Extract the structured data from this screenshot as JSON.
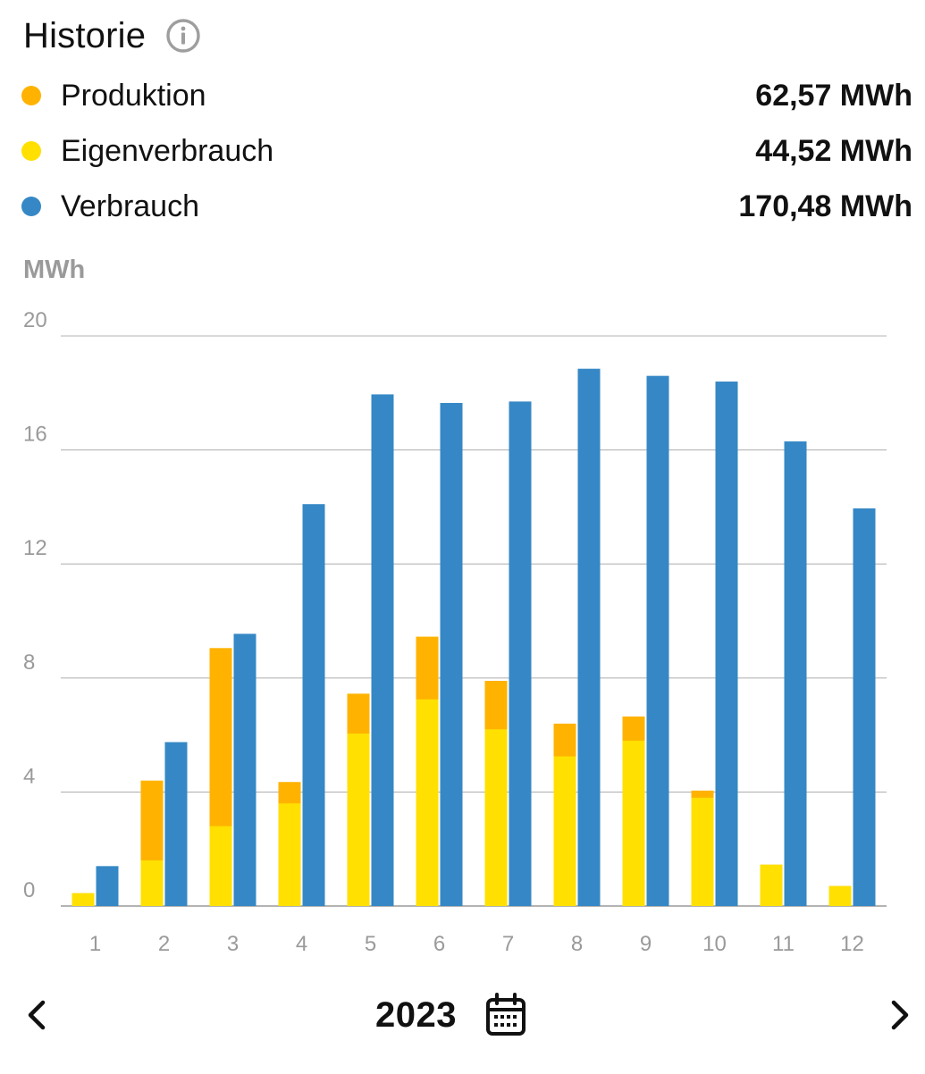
{
  "header": {
    "title": "Historie",
    "info_icon": "info-icon"
  },
  "legend": [
    {
      "key": "production",
      "label": "Produktion",
      "value": "62,57 MWh",
      "color": "#FFB300"
    },
    {
      "key": "self_consumption",
      "label": "Eigenverbrauch",
      "value": "44,52 MWh",
      "color": "#FFE000"
    },
    {
      "key": "consumption",
      "label": "Verbrauch",
      "value": "170,48 MWh",
      "color": "#3588C5"
    }
  ],
  "chart_data": {
    "type": "bar",
    "ylabel": "MWh",
    "ylim": [
      0,
      20
    ],
    "yticks": [
      0,
      4,
      8,
      12,
      16,
      20
    ],
    "grid": true,
    "categories": [
      "1",
      "2",
      "3",
      "4",
      "5",
      "6",
      "7",
      "8",
      "9",
      "10",
      "11",
      "12"
    ],
    "series": [
      {
        "name": "Produktion",
        "color": "#FFB300",
        "values": [
          0.45,
          4.4,
          9.05,
          4.35,
          7.45,
          9.45,
          7.9,
          6.4,
          6.65,
          4.05,
          1.45,
          0.7
        ]
      },
      {
        "name": "Eigenverbrauch",
        "color": "#FFE000",
        "values": [
          0.45,
          1.6,
          2.8,
          3.6,
          6.05,
          7.25,
          6.2,
          5.25,
          5.8,
          3.8,
          1.45,
          0.7
        ]
      },
      {
        "name": "Verbrauch",
        "color": "#3588C5",
        "values": [
          1.4,
          5.75,
          9.55,
          14.1,
          17.95,
          17.65,
          17.7,
          18.85,
          18.6,
          18.4,
          16.3,
          13.95
        ]
      }
    ]
  },
  "navigation": {
    "year": "2023",
    "prev_icon": "chevron-left-icon",
    "next_icon": "chevron-right-icon",
    "calendar_icon": "calendar-icon"
  }
}
